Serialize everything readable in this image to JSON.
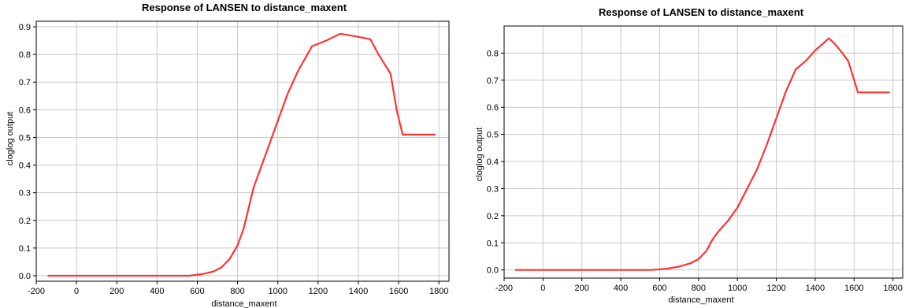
{
  "chart_data": [
    {
      "type": "line",
      "title": "Response of LANSEN to distance_maxent",
      "xlabel": "distance_maxent",
      "ylabel": "cloglog output",
      "xlim": [
        -200,
        1850
      ],
      "ylim": [
        -0.02,
        0.92
      ],
      "xticks": [
        -200,
        0,
        200,
        400,
        600,
        800,
        1000,
        1200,
        1400,
        1600,
        1800
      ],
      "yticks": [
        0.0,
        0.1,
        0.2,
        0.3,
        0.4,
        0.5,
        0.6,
        0.7,
        0.8,
        0.9
      ],
      "ytick_labels": [
        "0.0",
        "0.1",
        "0.2",
        "0.3",
        "0.4",
        "0.5",
        "0.6",
        "0.7",
        "0.8",
        "0.9"
      ],
      "grid": true,
      "color": "#ff3333",
      "series": [
        {
          "x": [
            -140,
            560,
            620,
            680,
            720,
            760,
            800,
            830,
            860,
            880,
            900,
            950,
            1000,
            1050,
            1100,
            1170,
            1240,
            1310,
            1390,
            1460,
            1500,
            1560,
            1590,
            1620,
            1700,
            1780
          ],
          "y": [
            0.0,
            0.0,
            0.005,
            0.015,
            0.03,
            0.06,
            0.11,
            0.17,
            0.26,
            0.32,
            0.36,
            0.46,
            0.56,
            0.66,
            0.74,
            0.83,
            0.85,
            0.875,
            0.865,
            0.855,
            0.8,
            0.73,
            0.6,
            0.51,
            0.51,
            0.51
          ]
        }
      ]
    },
    {
      "type": "line",
      "title": "Response of LANSEN to distance_maxent",
      "xlabel": "distance_maxent",
      "ylabel": "cloglog output",
      "xlim": [
        -200,
        1850
      ],
      "ylim": [
        -0.03,
        0.9
      ],
      "xticks": [
        -200,
        0,
        200,
        400,
        600,
        800,
        1000,
        1200,
        1400,
        1600,
        1800
      ],
      "yticks": [
        0.0,
        0.1,
        0.2,
        0.3,
        0.4,
        0.5,
        0.6,
        0.7,
        0.8
      ],
      "ytick_labels": [
        "0.0",
        "0.1",
        "0.2",
        "0.3",
        "0.4",
        "0.5",
        "0.6",
        "0.7",
        "0.8"
      ],
      "grid": true,
      "color": "#ff3333",
      "series": [
        {
          "x": [
            -140,
            560,
            640,
            700,
            760,
            800,
            840,
            870,
            900,
            950,
            1000,
            1050,
            1100,
            1150,
            1200,
            1250,
            1300,
            1350,
            1400,
            1440,
            1470,
            1500,
            1540,
            1570,
            1620,
            1700,
            1780
          ],
          "y": [
            0.0,
            0.0,
            0.005,
            0.012,
            0.025,
            0.04,
            0.07,
            0.11,
            0.14,
            0.18,
            0.23,
            0.3,
            0.37,
            0.46,
            0.56,
            0.66,
            0.74,
            0.77,
            0.81,
            0.835,
            0.855,
            0.835,
            0.8,
            0.77,
            0.655,
            0.655,
            0.655
          ]
        }
      ]
    }
  ]
}
